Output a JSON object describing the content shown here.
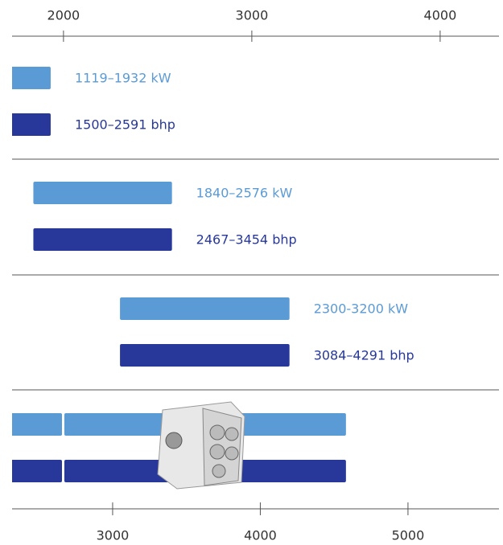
{
  "chart_data": {
    "type": "range",
    "xlim": [
      1727,
      4291
    ],
    "xticks": [
      2000,
      3000,
      4000
    ],
    "groups": [
      {
        "kw": {
          "values": [
            1119,
            1932
          ],
          "label": "1119–1932 kW"
        },
        "bhp_label": "1500–2591 bhp"
      },
      {
        "kw": {
          "values": [
            1840,
            2576
          ],
          "label": "1840–2576 kW"
        },
        "bhp_label": "2467–3454 bhp"
      },
      {
        "kw": {
          "values": [
            2300,
            3200
          ],
          "label": "2300-3200 kW"
        },
        "bhp_label": "3084–4291 bhp"
      }
    ],
    "x2lim": [
      2319,
      5589
    ],
    "x2ticks": [
      3000,
      4000,
      5000
    ],
    "bottom_segments": [
      [
        2000,
        2657
      ],
      [
        2673,
        4580
      ]
    ],
    "kw_color": "#5b9bd5",
    "bhp_color": "#27389a"
  }
}
